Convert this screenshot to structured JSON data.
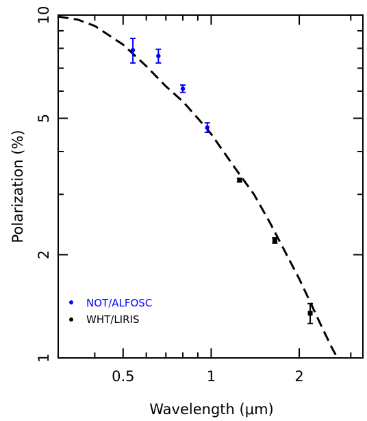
{
  "chart_data": {
    "type": "scatter",
    "title": "",
    "xlabel": "Wavelength (μm)",
    "ylabel": "Polarization (%)",
    "x_scale": "log",
    "y_scale": "log",
    "xlim": [
      0.3,
      3.3
    ],
    "ylim": [
      1,
      10
    ],
    "x_ticks": [
      {
        "value": 0.5,
        "label": "0.5"
      },
      {
        "value": 1,
        "label": "1"
      },
      {
        "value": 2,
        "label": "2"
      }
    ],
    "y_ticks": [
      {
        "value": 1,
        "label": "1"
      },
      {
        "value": 2,
        "label": "2"
      },
      {
        "value": 5,
        "label": "5"
      },
      {
        "value": 10,
        "label": "10"
      }
    ],
    "x_minor_ticks": [
      0.4,
      0.6,
      0.7,
      0.8,
      0.9,
      3
    ],
    "y_minor_ticks": [
      3,
      4,
      6,
      7,
      8,
      9
    ],
    "grid": false,
    "legend_position": "bottom-left",
    "series": [
      {
        "name": "NOT/ALFOSC",
        "color": "#0000ff",
        "points": [
          {
            "x": 0.54,
            "y": 7.9,
            "err": 0.65
          },
          {
            "x": 0.66,
            "y": 7.6,
            "err": 0.35
          },
          {
            "x": 0.8,
            "y": 6.1,
            "err": 0.15
          },
          {
            "x": 0.97,
            "y": 4.7,
            "err": 0.15
          }
        ]
      },
      {
        "name": "WHT/LIRIS",
        "color": "#000000",
        "points": [
          {
            "x": 1.25,
            "y": 3.3,
            "err": 0.04
          },
          {
            "x": 1.65,
            "y": 2.2,
            "err": 0.04
          },
          {
            "x": 2.18,
            "y": 1.35,
            "err": 0.09
          }
        ]
      }
    ],
    "fit_curve": {
      "style": "dashed",
      "color": "#000000",
      "points": [
        [
          0.3,
          9.9
        ],
        [
          0.35,
          9.7
        ],
        [
          0.4,
          9.3
        ],
        [
          0.5,
          8.2
        ],
        [
          0.6,
          7.1
        ],
        [
          0.7,
          6.2
        ],
        [
          0.8,
          5.6
        ],
        [
          0.9,
          5.0
        ],
        [
          1.0,
          4.5
        ],
        [
          1.2,
          3.6
        ],
        [
          1.4,
          3.0
        ],
        [
          1.6,
          2.45
        ],
        [
          1.8,
          2.02
        ],
        [
          2.0,
          1.7
        ],
        [
          2.2,
          1.43
        ],
        [
          2.4,
          1.22
        ],
        [
          2.6,
          1.06
        ],
        [
          2.7,
          1.0
        ]
      ]
    }
  }
}
